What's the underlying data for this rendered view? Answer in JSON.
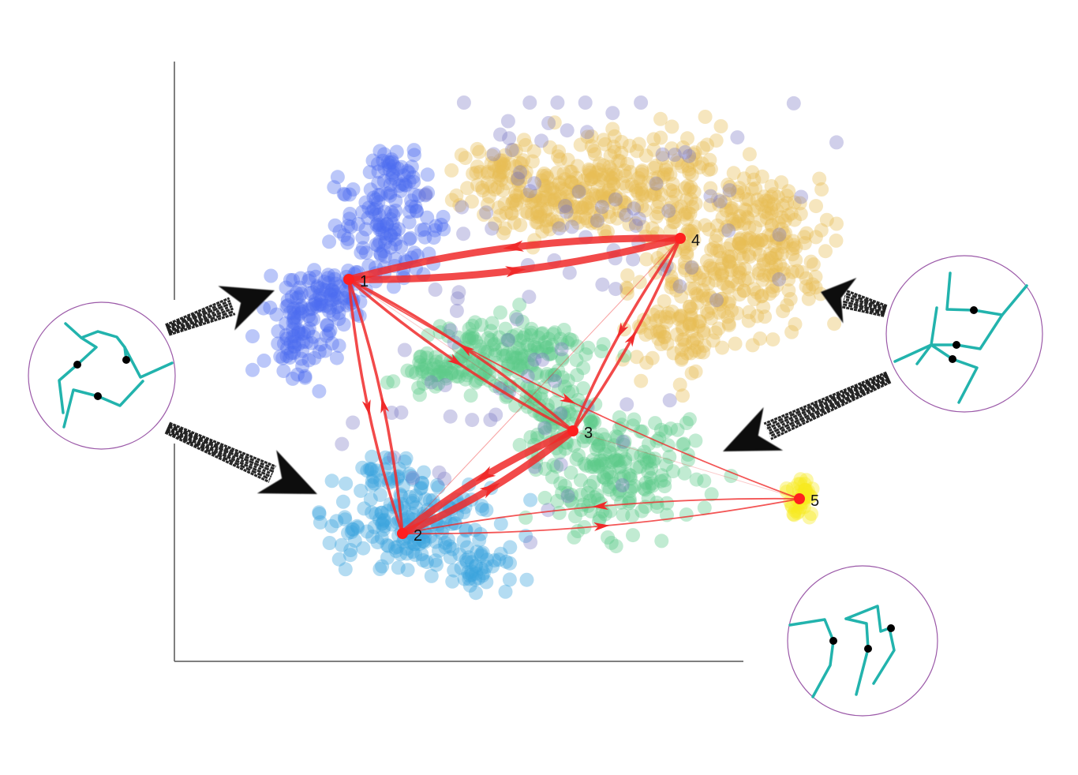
{
  "colors": {
    "edge": "#f02a2a",
    "node": "#ff1f1f",
    "axis": "#555555",
    "inset_border": "#9b59a8",
    "molecule": "#22b3ad",
    "atom": "#000000",
    "pointer_arrow": "#111111",
    "cluster_blue": "#4d6cf0",
    "cluster_lightblue": "#3aa3dd",
    "cluster_green": "#5ccb8a",
    "cluster_gold": "#e8bd55",
    "cluster_yellow": "#f6ea1c",
    "outlier_purple": "#7876c2"
  },
  "nodes": [
    {
      "id": "1",
      "label": "1"
    },
    {
      "id": "2",
      "label": "2"
    },
    {
      "id": "3",
      "label": "3"
    },
    {
      "id": "4",
      "label": "4"
    },
    {
      "id": "5",
      "label": "5"
    }
  ],
  "edges": [
    {
      "from": "1",
      "to": "4",
      "weight": "strong"
    },
    {
      "from": "4",
      "to": "1",
      "weight": "strong"
    },
    {
      "from": "3",
      "to": "2",
      "weight": "strong"
    },
    {
      "from": "2",
      "to": "3",
      "weight": "strong"
    },
    {
      "from": "1",
      "to": "2",
      "weight": "medium"
    },
    {
      "from": "2",
      "to": "1",
      "weight": "medium"
    },
    {
      "from": "3",
      "to": "4",
      "weight": "medium"
    },
    {
      "from": "4",
      "to": "3",
      "weight": "medium"
    },
    {
      "from": "1",
      "to": "3",
      "weight": "medium"
    },
    {
      "from": "3",
      "to": "1",
      "weight": "medium"
    },
    {
      "from": "1",
      "to": "5",
      "weight": "weak"
    },
    {
      "from": "5",
      "to": "2",
      "weight": "weak"
    },
    {
      "from": "2",
      "to": "5",
      "weight": "weak"
    }
  ],
  "insets": [
    {
      "name": "state-1-2-conformation",
      "icon": "triangle-molecule"
    },
    {
      "name": "state-4-3-conformation",
      "icon": "branched-molecule"
    },
    {
      "name": "state-5-conformation",
      "icon": "stacked-molecule"
    }
  ]
}
